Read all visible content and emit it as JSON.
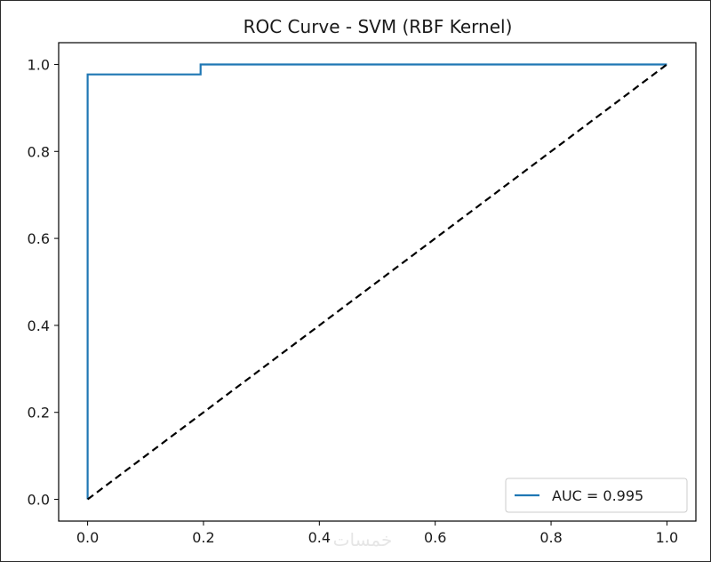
{
  "chart_data": {
    "type": "line",
    "title": "ROC Curve - SVM (RBF Kernel)",
    "xlabel": "",
    "ylabel": "",
    "xlim": [
      -0.05,
      1.05
    ],
    "ylim": [
      -0.05,
      1.05
    ],
    "xticks": [
      "0.0",
      "0.2",
      "0.4",
      "0.6",
      "0.8",
      "1.0"
    ],
    "xtick_values": [
      0.0,
      0.2,
      0.4,
      0.6,
      0.8,
      1.0
    ],
    "yticks": [
      "0.0",
      "0.2",
      "0.4",
      "0.6",
      "0.8",
      "1.0"
    ],
    "ytick_values": [
      0.0,
      0.2,
      0.4,
      0.6,
      0.8,
      1.0
    ],
    "grid": false,
    "legend_position": "lower-right",
    "series": [
      {
        "name": "AUC = 0.995",
        "color": "#1f77b4",
        "style": "solid",
        "x": [
          0.0,
          0.0,
          0.195,
          0.195,
          1.0
        ],
        "y": [
          0.0,
          0.977,
          0.977,
          1.0,
          1.0
        ]
      },
      {
        "color": "#000000",
        "style": "dashed",
        "x": [
          0.0,
          1.0
        ],
        "y": [
          0.0,
          1.0
        ]
      }
    ]
  },
  "watermark": "خمسات"
}
